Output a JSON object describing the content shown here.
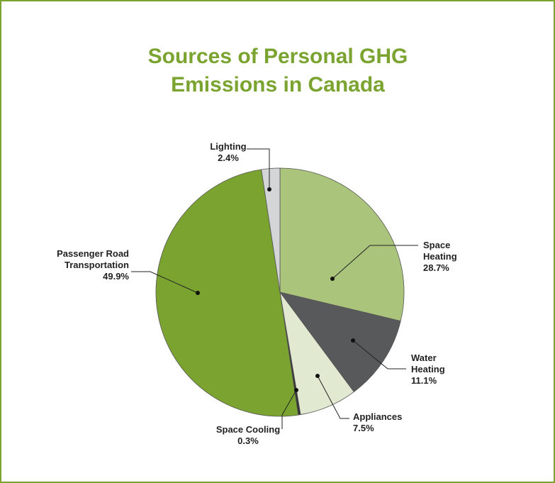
{
  "chart_data": {
    "type": "pie",
    "title": "Sources of Personal GHG Emissions in Canada",
    "categories": [
      "Space Heating",
      "Water Heating",
      "Appliances",
      "Space Cooling",
      "Passenger Road Transportation",
      "Lighting"
    ],
    "values": [
      28.7,
      11.1,
      7.5,
      0.3,
      49.9,
      2.4
    ],
    "value_labels": [
      "28.7%",
      "11.1%",
      "7.5%",
      "0.3%",
      "49.9%",
      "2.4%"
    ],
    "colors": [
      "#abc47c",
      "#58595b",
      "#e1e9d0",
      "#333333",
      "#7aa32f",
      "#d3d5d7"
    ]
  }
}
